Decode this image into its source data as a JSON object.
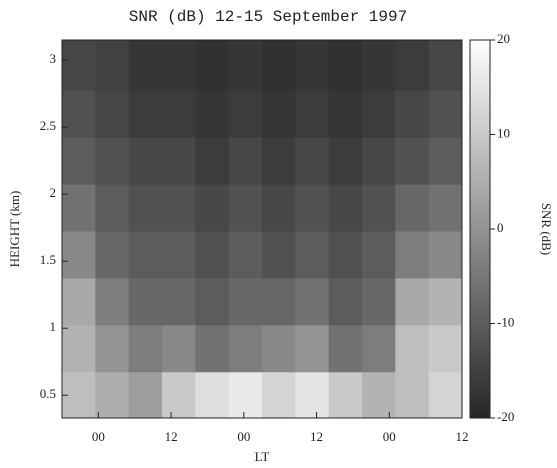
{
  "chart_data": {
    "type": "heatmap",
    "title": "SNR (dB) 12-15 September 1997",
    "x_label": "LT",
    "y_label": "HEIGHT (km)",
    "colorbar_label": "SNR (dB)",
    "x": [
      20.75,
      26.25,
      31.75,
      37.25,
      42.75,
      48.25,
      53.75,
      59.25,
      64.75,
      70.25,
      75.75,
      81.25
    ],
    "y": [
      0.5,
      0.85,
      1.2,
      1.55,
      1.9,
      2.25,
      2.6,
      2.95
    ],
    "z": [
      [
        8,
        5,
        2,
        10,
        14,
        16,
        12,
        15,
        10,
        6,
        8,
        12
      ],
      [
        6,
        0,
        -4,
        -2,
        -6,
        -4,
        -2,
        0,
        -6,
        -4,
        8,
        10
      ],
      [
        4,
        -4,
        -8,
        -8,
        -10,
        -8,
        -8,
        -6,
        -10,
        -8,
        4,
        6
      ],
      [
        -2,
        -8,
        -10,
        -10,
        -12,
        -10,
        -12,
        -10,
        -12,
        -10,
        -4,
        -2
      ],
      [
        -6,
        -10,
        -12,
        -12,
        -14,
        -12,
        -14,
        -12,
        -14,
        -12,
        -8,
        -6
      ],
      [
        -10,
        -12,
        -14,
        -14,
        -16,
        -14,
        -16,
        -14,
        -16,
        -14,
        -12,
        -10
      ],
      [
        -12,
        -14,
        -16,
        -16,
        -17,
        -16,
        -17,
        -16,
        -17,
        -16,
        -14,
        -12
      ],
      [
        -14,
        -15,
        -17,
        -17,
        -18,
        -17,
        -18,
        -17,
        -18,
        -17,
        -16,
        -14
      ]
    ],
    "xlim": [
      18,
      84
    ],
    "xticks": [
      {
        "value": 24,
        "label": "00"
      },
      {
        "value": 36,
        "label": "12"
      },
      {
        "value": 48,
        "label": "00"
      },
      {
        "value": 60,
        "label": "12"
      },
      {
        "value": 72,
        "label": "00"
      },
      {
        "value": 84,
        "label": "12"
      }
    ],
    "ylim": [
      0.33,
      3.15
    ],
    "yticks": [
      0.5,
      1.0,
      1.5,
      2.0,
      2.5,
      3.0
    ],
    "zlim": [
      -20,
      20
    ],
    "zticks": [
      -20,
      -10,
      0,
      10,
      20
    ],
    "colormap": [
      "#262626",
      "#ffffff"
    ]
  }
}
